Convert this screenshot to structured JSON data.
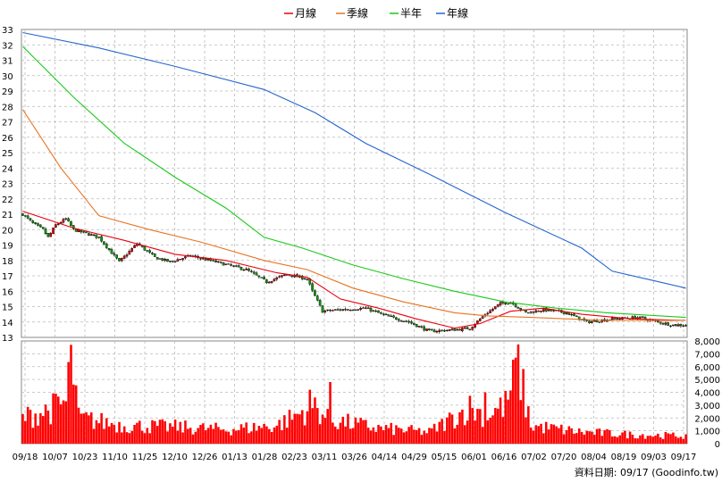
{
  "chart_data": {
    "type": "candlestick",
    "legend": [
      {
        "name": "月線",
        "color": "#e8000b"
      },
      {
        "name": "季線",
        "color": "#e8731e"
      },
      {
        "name": "半年",
        "color": "#19c919"
      },
      {
        "name": "年線",
        "color": "#2465cc"
      }
    ],
    "price_axis": {
      "ylim": [
        13,
        33
      ],
      "ticks": [
        13,
        14,
        15,
        16,
        17,
        18,
        19,
        20,
        21,
        22,
        23,
        24,
        25,
        26,
        27,
        28,
        29,
        30,
        31,
        32,
        33
      ]
    },
    "volume_axis": {
      "ylim": [
        0,
        8000
      ],
      "ticks": [
        "0",
        "1,000",
        "2,000",
        "3,000",
        "4,000",
        "5,000",
        "6,000",
        "7,000",
        "8,000"
      ]
    },
    "x_labels": [
      "09/18",
      "10/07",
      "10/23",
      "11/10",
      "11/25",
      "12/10",
      "12/26",
      "01/13",
      "01/28",
      "02/23",
      "03/11",
      "03/26",
      "04/14",
      "04/29",
      "05/15",
      "06/01",
      "06/16",
      "07/02",
      "07/20",
      "08/04",
      "08/19",
      "09/03",
      "09/17"
    ],
    "price_keypoints": [
      [
        0,
        21.0
      ],
      [
        4,
        20.4
      ],
      [
        8,
        20.0
      ],
      [
        10,
        19.5
      ],
      [
        13,
        20.3
      ],
      [
        17,
        20.7
      ],
      [
        20,
        20.0
      ],
      [
        30,
        19.5
      ],
      [
        38,
        17.9
      ],
      [
        45,
        19.1
      ],
      [
        52,
        18.2
      ],
      [
        58,
        17.9
      ],
      [
        66,
        18.3
      ],
      [
        76,
        17.9
      ],
      [
        88,
        17.4
      ],
      [
        96,
        16.6
      ],
      [
        104,
        17.1
      ],
      [
        112,
        16.8
      ],
      [
        114,
        16.0
      ],
      [
        118,
        14.7
      ],
      [
        125,
        14.8
      ],
      [
        135,
        14.9
      ],
      [
        143,
        14.4
      ],
      [
        152,
        14.0
      ],
      [
        160,
        13.4
      ],
      [
        170,
        13.5
      ],
      [
        176,
        13.6
      ],
      [
        182,
        14.5
      ],
      [
        188,
        15.2
      ],
      [
        192,
        15.3
      ],
      [
        198,
        14.6
      ],
      [
        205,
        14.8
      ],
      [
        214,
        14.6
      ],
      [
        222,
        14.0
      ],
      [
        232,
        14.2
      ],
      [
        242,
        14.3
      ],
      [
        250,
        14.0
      ],
      [
        256,
        13.8
      ],
      [
        261,
        13.8
      ]
    ],
    "volume_keypoints": [
      [
        0,
        2000
      ],
      [
        10,
        2600
      ],
      [
        17,
        3200
      ],
      [
        19,
        7700
      ],
      [
        22,
        2000
      ],
      [
        40,
        1400
      ],
      [
        60,
        1300
      ],
      [
        80,
        1100
      ],
      [
        100,
        1400
      ],
      [
        115,
        3000
      ],
      [
        120,
        1900
      ],
      [
        140,
        1200
      ],
      [
        160,
        900
      ],
      [
        176,
        2800
      ],
      [
        182,
        2200
      ],
      [
        190,
        3000
      ],
      [
        195,
        5900
      ],
      [
        200,
        1400
      ],
      [
        220,
        900
      ],
      [
        240,
        700
      ],
      [
        261,
        600
      ]
    ],
    "volume_spikes": [
      [
        19,
        7700
      ],
      [
        20,
        4600
      ],
      [
        113,
        4200
      ],
      [
        121,
        4800
      ],
      [
        182,
        4000
      ],
      [
        194,
        6700
      ]
    ],
    "moving_averages": [
      {
        "name": "月線",
        "points": [
          [
            0,
            21.2
          ],
          [
            20,
            20.1
          ],
          [
            40,
            19.3
          ],
          [
            60,
            18.4
          ],
          [
            80,
            18.0
          ],
          [
            100,
            17.2
          ],
          [
            112,
            16.9
          ],
          [
            125,
            15.5
          ],
          [
            140,
            14.9
          ],
          [
            155,
            14.2
          ],
          [
            170,
            13.6
          ],
          [
            180,
            13.9
          ],
          [
            192,
            14.7
          ],
          [
            205,
            14.9
          ],
          [
            220,
            14.5
          ],
          [
            240,
            14.2
          ],
          [
            261,
            14.1
          ]
        ]
      },
      {
        "name": "季線",
        "points": [
          [
            0,
            27.8
          ],
          [
            15,
            24.0
          ],
          [
            30,
            20.9
          ],
          [
            50,
            20.0
          ],
          [
            70,
            19.2
          ],
          [
            95,
            18.0
          ],
          [
            112,
            17.4
          ],
          [
            130,
            16.2
          ],
          [
            150,
            15.3
          ],
          [
            170,
            14.6
          ],
          [
            183,
            14.4
          ],
          [
            200,
            14.3
          ],
          [
            230,
            14.1
          ],
          [
            261,
            14.1
          ]
        ]
      },
      {
        "name": "半年",
        "points": [
          [
            0,
            31.9
          ],
          [
            20,
            28.6
          ],
          [
            40,
            25.6
          ],
          [
            60,
            23.4
          ],
          [
            80,
            21.4
          ],
          [
            95,
            19.5
          ],
          [
            110,
            18.8
          ],
          [
            130,
            17.7
          ],
          [
            150,
            16.8
          ],
          [
            170,
            16.0
          ],
          [
            190,
            15.3
          ],
          [
            210,
            14.9
          ],
          [
            230,
            14.6
          ],
          [
            261,
            14.3
          ]
        ]
      },
      {
        "name": "年線",
        "points": [
          [
            0,
            32.8
          ],
          [
            30,
            31.8
          ],
          [
            60,
            30.6
          ],
          [
            95,
            29.1
          ],
          [
            115,
            27.6
          ],
          [
            135,
            25.6
          ],
          [
            160,
            23.6
          ],
          [
            190,
            21.1
          ],
          [
            220,
            18.8
          ],
          [
            232,
            17.3
          ],
          [
            248,
            16.7
          ],
          [
            261,
            16.2
          ]
        ]
      }
    ]
  },
  "footer": {
    "text": "資料日期: 09/17  (Goodinfo.tw)"
  }
}
